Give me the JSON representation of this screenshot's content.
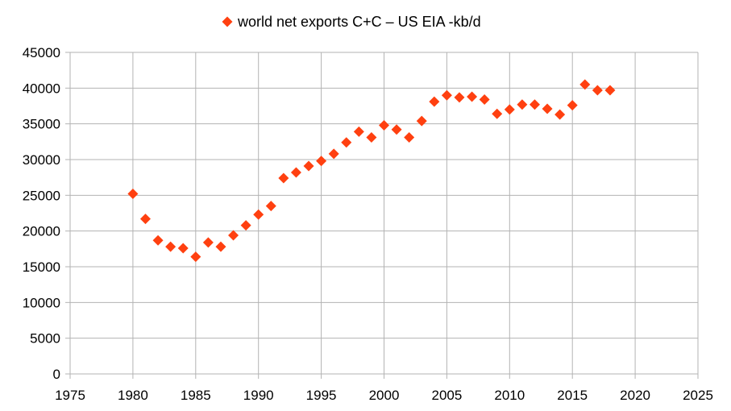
{
  "chart_data": {
    "type": "scatter",
    "legend": {
      "label": "world net exports C+C – US EIA -kb/d",
      "position": "top-center"
    },
    "series": [
      {
        "name": "world net exports C+C – US EIA -kb/d",
        "color": "#ff4010",
        "marker": "diamond",
        "x": [
          1980,
          1981,
          1982,
          1983,
          1984,
          1985,
          1986,
          1987,
          1988,
          1989,
          1990,
          1991,
          1992,
          1993,
          1994,
          1995,
          1996,
          1997,
          1998,
          1999,
          2000,
          2001,
          2002,
          2003,
          2004,
          2005,
          2006,
          2007,
          2008,
          2009,
          2010,
          2011,
          2012,
          2013,
          2014,
          2015,
          2016,
          2017,
          2018
        ],
        "y": [
          25200,
          21700,
          18700,
          17800,
          17600,
          16400,
          18400,
          17800,
          19400,
          20800,
          22300,
          23500,
          27400,
          28200,
          29100,
          29800,
          30800,
          32400,
          33900,
          33100,
          34800,
          34200,
          33100,
          35400,
          38100,
          39000,
          38700,
          38800,
          38400,
          36400,
          37000,
          37700,
          37700,
          37100,
          36300,
          37600,
          40500,
          39700,
          39700
        ]
      }
    ],
    "xaxis": {
      "min": 1975,
      "max": 2025,
      "ticks": [
        1975,
        1980,
        1985,
        1990,
        1995,
        2000,
        2005,
        2010,
        2015,
        2020,
        2025
      ],
      "tick_labels": [
        "1975",
        "1980",
        "1985",
        "1990",
        "1995",
        "2000",
        "2005",
        "2010",
        "2015",
        "2020",
        "2025"
      ]
    },
    "yaxis": {
      "min": 0,
      "max": 45000,
      "ticks": [
        0,
        5000,
        10000,
        15000,
        20000,
        25000,
        30000,
        35000,
        40000,
        45000
      ],
      "tick_labels": [
        "0",
        "5000",
        "10000",
        "15000",
        "20000",
        "25000",
        "30000",
        "35000",
        "40000",
        "45000"
      ]
    },
    "grid": {
      "x": true,
      "y": true,
      "color": "#b3b3b3"
    },
    "title": "",
    "xlabel": "",
    "ylabel": ""
  }
}
